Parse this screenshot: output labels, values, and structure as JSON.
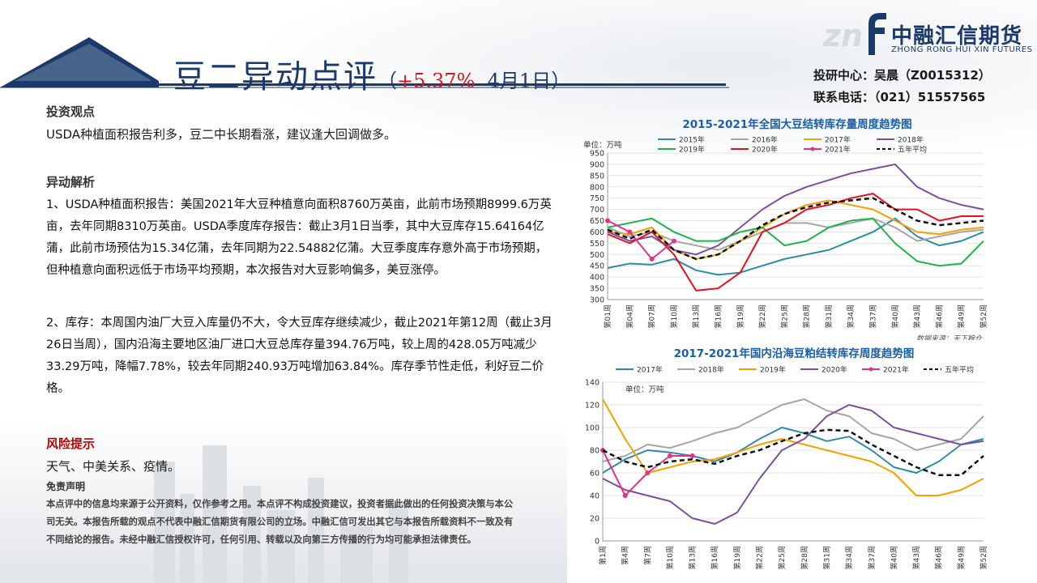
{
  "header": {
    "title": "豆二异动点评",
    "paren_open": "（",
    "change_pct": "+5.37%",
    "date": "4月1日",
    "paren_close": "）"
  },
  "brand": {
    "logo_mark": "zn",
    "name_cn": "中融汇信期货",
    "name_en": "ZHONG RONG HUI XIN FUTURES"
  },
  "contact": {
    "research": "投研中心：吴晨（Z0015312）",
    "phone": "联系电话：（021）51557565"
  },
  "view": {
    "heading": "投资观点",
    "text": "USDA种植面积报告利多，豆二中长期看涨，建议逢大回调做多。"
  },
  "analysis": {
    "heading": "异动解析",
    "para1": "1、USDA种植面积报告：美国2021年大豆种植意向面积8760万英亩，此前市场预期8999.6万英亩，去年同期8310万英亩。USDA季度库存报告：截止3月1日当季，其中大豆库存15.64164亿蒲，此前市场预估为15.34亿蒲，去年同期为22.54882亿蒲。大豆季度库存意外高于市场预期，但种植意向面积远低于市场平均预期，本次报告对大豆影响偏多，美豆涨停。",
    "para2": "2、库存：本周国内油厂大豆入库量仍不大，令大豆库存继续减少，截止2021年第12周（截止3月26日当周），国内沿海主要地区油厂进口大豆总库存量394.76万吨，较上周的428.05万吨减少33.29万吨，降幅7.78%，较去年同期240.93万吨增加63.84%。库存季节性走低，利好豆二价格。"
  },
  "risk": {
    "heading": "风险提示",
    "text": "天气、中美关系、疫情。"
  },
  "disclaimer": {
    "heading": "免责声明",
    "text": "本点评中的信息均来源于公开资料，仅作参考之用。本点评不构成投资建议，投资者据此做出的任何投资决策与本公司无关。本报告所载的观点不代表中融汇信期货有限公司的立场。中融汇信可发出其它与本报告所载资料不一致及有不同结论的报告。未经中融汇信授权许可，任何引用、转载以及向第三方传播的行为均可能承担法律责任。"
  },
  "chart_data": [
    {
      "type": "line",
      "title": "2015-2021年全国大豆结转库存量周度趋势图",
      "unit_label": "单位：万吨",
      "source": "数据来源：天下粮仓",
      "ylim": [
        300,
        950
      ],
      "yticks": [
        300,
        350,
        400,
        450,
        500,
        550,
        600,
        650,
        700,
        750,
        800,
        850,
        900,
        950
      ],
      "xticks": [
        "第01周",
        "第04周",
        "第07周",
        "第10周",
        "第13周",
        "第16周",
        "第19周",
        "第22周",
        "第25周",
        "第28周",
        "第31周",
        "第34周",
        "第37周",
        "第40周",
        "第43周",
        "第46周",
        "第49周",
        "第52周"
      ],
      "x_weeks": [
        1,
        4,
        7,
        10,
        13,
        16,
        19,
        22,
        25,
        28,
        31,
        34,
        37,
        40,
        43,
        46,
        49,
        52
      ],
      "series": [
        {
          "name": "2015年",
          "color": "#2e8ba8",
          "values": [
            440,
            460,
            455,
            480,
            430,
            410,
            420,
            450,
            480,
            500,
            520,
            560,
            600,
            660,
            580,
            540,
            560,
            600
          ]
        },
        {
          "name": "2016年",
          "color": "#a6a6a6",
          "values": [
            620,
            580,
            600,
            560,
            540,
            520,
            560,
            600,
            640,
            640,
            620,
            640,
            660,
            620,
            560,
            580,
            600,
            610
          ]
        },
        {
          "name": "2017年",
          "color": "#f5a000",
          "values": [
            600,
            590,
            620,
            520,
            480,
            500,
            560,
            620,
            680,
            720,
            740,
            720,
            700,
            650,
            600,
            590,
            610,
            620
          ]
        },
        {
          "name": "2018年",
          "color": "#7b4fa0",
          "values": [
            600,
            560,
            580,
            520,
            500,
            540,
            620,
            700,
            760,
            800,
            830,
            860,
            880,
            900,
            800,
            750,
            720,
            700
          ]
        },
        {
          "name": "2019年",
          "color": "#22b24c",
          "values": [
            620,
            640,
            660,
            600,
            560,
            560,
            600,
            620,
            540,
            560,
            620,
            650,
            660,
            550,
            470,
            450,
            460,
            560
          ]
        },
        {
          "name": "2020年",
          "color": "#e0141e",
          "values": [
            590,
            550,
            600,
            500,
            340,
            350,
            420,
            600,
            640,
            700,
            720,
            750,
            770,
            700,
            700,
            650,
            670,
            670
          ]
        },
        {
          "name": "2021年",
          "color": "#e0338a",
          "values": [
            650,
            600,
            480,
            560
          ]
        },
        {
          "name": "五年平均",
          "color": "#111111",
          "values": [
            610,
            570,
            610,
            520,
            480,
            500,
            560,
            630,
            680,
            710,
            730,
            740,
            750,
            700,
            650,
            630,
            640,
            650
          ]
        }
      ]
    },
    {
      "type": "line",
      "title": "2017-2021年国内沿海豆粕结转库存周度趋势图",
      "unit_label": "单位：万吨",
      "ylim": [
        0,
        140
      ],
      "yticks": [
        0,
        20,
        40,
        60,
        80,
        100,
        120,
        140
      ],
      "xticks": [
        "第1周",
        "第4周",
        "第7周",
        "第10周",
        "第13周",
        "第16周",
        "第19周",
        "第22周",
        "第25周",
        "第28周",
        "第31周",
        "第34周",
        "第37周",
        "第40周",
        "第43周",
        "第46周",
        "第49周",
        "第52周"
      ],
      "x_weeks": [
        1,
        4,
        7,
        10,
        13,
        16,
        19,
        22,
        25,
        28,
        31,
        34,
        37,
        40,
        43,
        46,
        49,
        52
      ],
      "series": [
        {
          "name": "2017年",
          "color": "#2e8ba8",
          "values": [
            60,
            72,
            80,
            78,
            75,
            70,
            78,
            90,
            100,
            95,
            88,
            92,
            80,
            65,
            60,
            70,
            85,
            90
          ]
        },
        {
          "name": "2018年",
          "color": "#a6a6a6",
          "values": [
            70,
            75,
            85,
            82,
            88,
            95,
            100,
            110,
            120,
            125,
            115,
            110,
            95,
            90,
            80,
            85,
            90,
            110
          ]
        },
        {
          "name": "2019年",
          "color": "#f5a000",
          "values": [
            125,
            90,
            60,
            65,
            70,
            72,
            78,
            85,
            90,
            85,
            80,
            75,
            70,
            60,
            40,
            40,
            45,
            55
          ]
        },
        {
          "name": "2020年",
          "color": "#7b4fa0",
          "values": [
            55,
            45,
            40,
            35,
            20,
            15,
            25,
            55,
            80,
            90,
            110,
            120,
            115,
            100,
            95,
            90,
            85,
            88
          ]
        },
        {
          "name": "2021年",
          "color": "#e0338a",
          "values": [
            80,
            40,
            60,
            75,
            75
          ]
        },
        {
          "name": "五年平均",
          "color": "#111111",
          "values": [
            80,
            70,
            65,
            70,
            72,
            68,
            75,
            80,
            88,
            95,
            98,
            97,
            85,
            75,
            65,
            58,
            58,
            75
          ]
        }
      ]
    }
  ]
}
